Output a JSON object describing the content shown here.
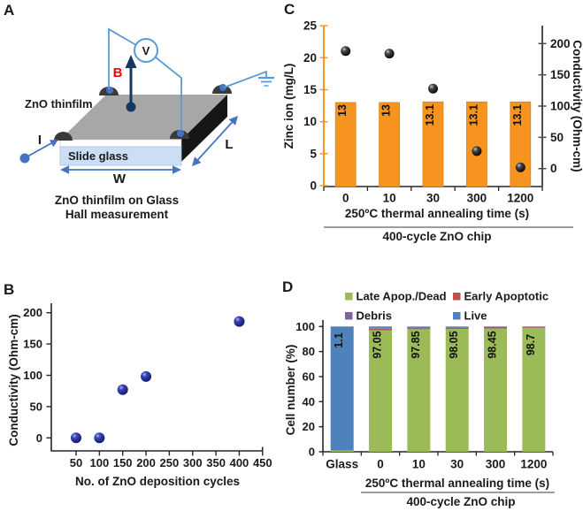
{
  "figure": {
    "background": "#FFFFFF",
    "panels": {
      "a": {
        "letter": "A",
        "film_label": "ZnO thinfilm",
        "glass_label": "Slide glass",
        "voltmeter_label": "V",
        "field_label": "B",
        "current_label": "I",
        "width_label": "W",
        "length_label": "L",
        "caption_line1": "ZnO thinfilm on Glass",
        "caption_line2": "Hall measurement"
      },
      "b": {
        "letter": "B"
      },
      "c": {
        "letter": "C"
      },
      "d": {
        "letter": "D"
      }
    }
  },
  "chart_data": [
    {
      "panel": "B",
      "type": "scatter",
      "xlabel": "No. of ZnO deposition cycles",
      "ylabel": "Conductivity (Ohm-cm)",
      "x": [
        50,
        100,
        150,
        200,
        400
      ],
      "y": [
        0,
        0,
        77,
        98,
        186
      ],
      "xticks": [
        50,
        100,
        150,
        200,
        250,
        300,
        350,
        400,
        450
      ],
      "yticks": [
        0,
        50,
        100,
        150,
        200
      ],
      "xlim": [
        25,
        460
      ],
      "ylim": [
        -20,
        215
      ],
      "grid": false,
      "legend_position": "none",
      "marker": {
        "shape": "sphere",
        "color": "#2B34A8"
      }
    },
    {
      "panel": "C",
      "type": "bar",
      "subtype": "bar+scatter dual axis",
      "categories": [
        "0",
        "10",
        "30",
        "300",
        "1200"
      ],
      "series": [
        {
          "name": "Zinc ion (mg/L)",
          "type": "bar",
          "axis": "left",
          "color": "#F79420",
          "values": [
            13,
            13,
            13.1,
            13.1,
            13.1
          ],
          "labels": [
            "13",
            "13",
            "13.1",
            "13.1",
            "13.1"
          ]
        },
        {
          "name": "Conductivity (Ohm-cm)",
          "type": "scatter",
          "axis": "right",
          "color": "#1A1A1A",
          "values": [
            188,
            184,
            128,
            28,
            2
          ]
        }
      ],
      "left_axis": {
        "label": "Zinc ion (mg/L)",
        "ticks": [
          0,
          5,
          10,
          15,
          20,
          25
        ],
        "range": [
          0,
          25
        ],
        "color": "#F79420"
      },
      "right_axis": {
        "label": "Conductivity (Ohm-cm)",
        "ticks": [
          0,
          50,
          100,
          150,
          200
        ],
        "range": [
          0,
          200
        ],
        "color": "#4A4A4A"
      },
      "xlabel": "250ºC thermal annealing time (s)",
      "footer": "400-cycle ZnO chip",
      "grid": false,
      "legend_position": "none"
    },
    {
      "panel": "D",
      "type": "bar",
      "subtype": "stacked",
      "categories": [
        "Glass",
        "0",
        "10",
        "30",
        "300",
        "1200"
      ],
      "series": [
        {
          "name": "Late Apop./Dead",
          "color": "#9BBB59",
          "values": [
            1.1,
            97.05,
            97.85,
            98.05,
            98.45,
            98.7
          ]
        },
        {
          "name": "Early Apoptotic",
          "color": "#C0504D",
          "values": [
            0,
            1.2,
            0.9,
            0.8,
            0.7,
            0.6
          ]
        },
        {
          "name": "Debris",
          "color": "#8064A2",
          "values": [
            0,
            0.45,
            0.35,
            0.35,
            0.35,
            0.2
          ]
        },
        {
          "name": "Live",
          "color": "#4F81BD",
          "values": [
            98.9,
            1.3,
            0.9,
            0.8,
            0.5,
            0.5
          ]
        }
      ],
      "bar_labels": [
        "1.1",
        "97.05",
        "97.85",
        "98.05",
        "98.45",
        "98.7"
      ],
      "ylabel": "Cell number (%)",
      "yticks": [
        0,
        20,
        40,
        60,
        80,
        100
      ],
      "ylim": [
        0,
        100
      ],
      "xlabel": "250ºC thermal annealing time (s)",
      "footer": "400-cycle ZnO chip",
      "legend": [
        "Late Apop./Dead",
        "Early Apoptotic",
        "Debris",
        "Live"
      ],
      "legend_position": "top",
      "grid": false
    }
  ],
  "colors": {
    "accent_orange": "#F79420",
    "navy_marker": "#2B34A8",
    "black_marker": "#1A1A1A",
    "wire_blue": "#5B9BD5",
    "arrow_blue": "#4472C4",
    "field_navy": "#17375E",
    "film_gray": "#A7A7A7",
    "chip_side_black": "#161616",
    "glass_blue": "#CBDEF5",
    "legend_green": "#9BBB59",
    "legend_red": "#C0504D",
    "legend_purple": "#8064A2",
    "legend_blue": "#4F81BD",
    "field_label_red": "#FF0000"
  }
}
